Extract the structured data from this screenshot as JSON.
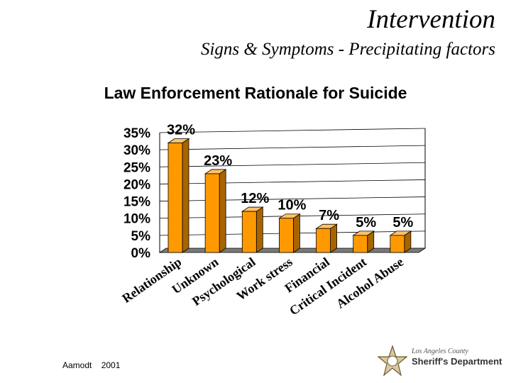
{
  "header": {
    "title": "Intervention",
    "subtitle": "Signs & Symptoms - Precipitating factors"
  },
  "footer": {
    "citation": "Aamodt 2001"
  },
  "logo": {
    "line1": "Los Angeles County",
    "line2": "Sheriff's Department"
  },
  "colors": {
    "bar_front": "#ff9900",
    "bar_side": "#a86400",
    "bar_top": "#ffc266",
    "floor": "#7a7a7a"
  },
  "chart_data": {
    "type": "bar",
    "title": "Law Enforcement Rationale for Suicide",
    "categories": [
      "Relationship",
      "Unknown",
      "Psychological",
      "Work stress",
      "Financial",
      "Critical Incident",
      "Alcohol Abuse"
    ],
    "values": [
      32,
      23,
      12,
      10,
      7,
      5,
      5
    ],
    "data_labels": [
      "32%",
      "23%",
      "12%",
      "10%",
      "7%",
      "5%",
      "5%"
    ],
    "yticks": [
      "0%",
      "5%",
      "10%",
      "15%",
      "20%",
      "25%",
      "30%",
      "35%"
    ],
    "ylim": [
      0,
      35
    ],
    "xlabel": "",
    "ylabel": "",
    "grid": true,
    "legend": "none"
  }
}
